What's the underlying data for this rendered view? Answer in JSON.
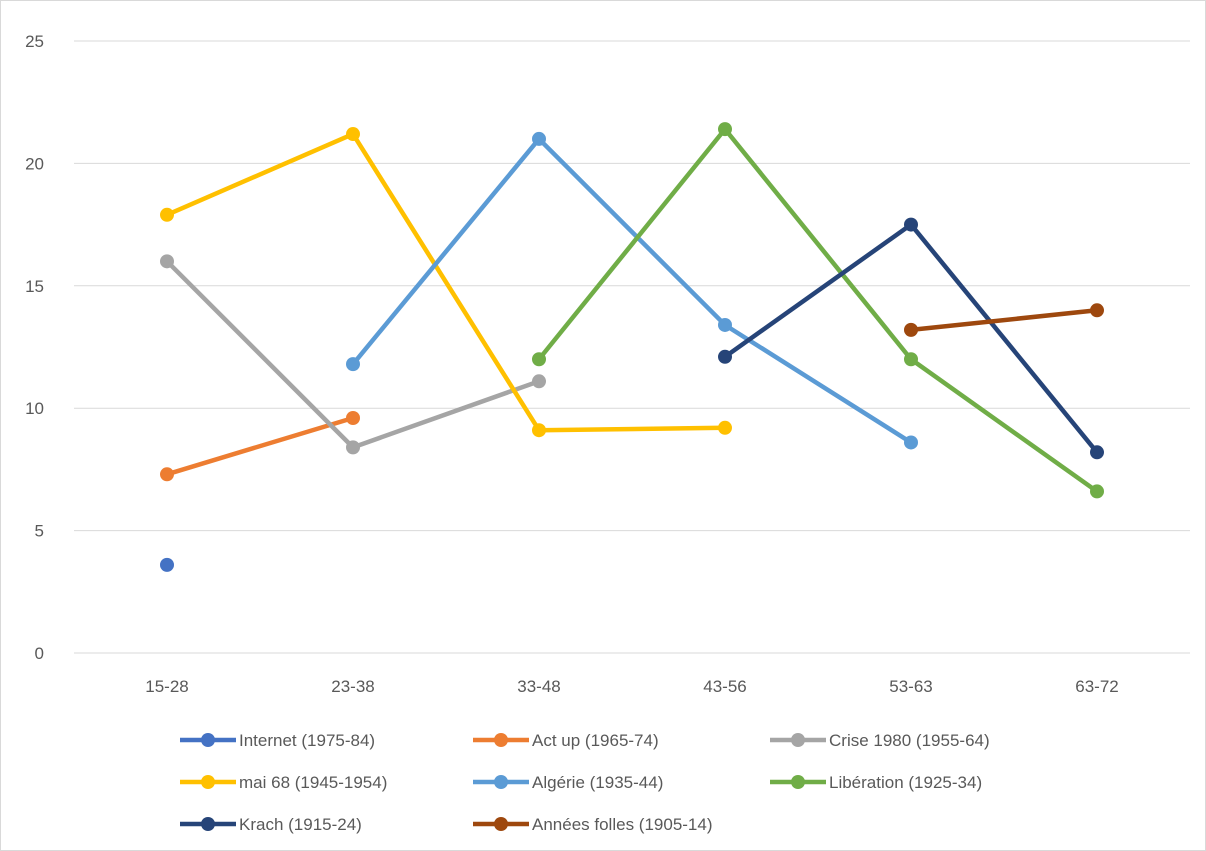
{
  "chart_data": {
    "type": "line",
    "title": "",
    "xlabel": "",
    "ylabel": "",
    "categories": [
      "15-28",
      "23-38",
      "33-48",
      "43-56",
      "53-63",
      "63-72"
    ],
    "ylim": [
      0,
      25
    ],
    "yticks": [
      0,
      5,
      10,
      15,
      20,
      25
    ],
    "grid": true,
    "legend_position": "bottom",
    "series": [
      {
        "name": "Internet  (1975-84)",
        "color": "#4472C4",
        "values": [
          3.6,
          null,
          null,
          null,
          null,
          null
        ]
      },
      {
        "name": "Act up (1965-74)",
        "color": "#ED7D31",
        "values": [
          7.3,
          9.6,
          null,
          null,
          null,
          null
        ]
      },
      {
        "name": "Crise 1980 (1955-64)",
        "color": "#A5A5A5",
        "values": [
          16.0,
          8.4,
          11.1,
          null,
          null,
          null
        ]
      },
      {
        "name": "mai 68 (1945-1954)",
        "color": "#FFC000",
        "values": [
          17.9,
          21.2,
          9.1,
          9.2,
          null,
          null
        ]
      },
      {
        "name": "Algérie (1935-44)",
        "color": "#5B9BD5",
        "values": [
          null,
          11.8,
          21.0,
          13.4,
          8.6,
          null
        ]
      },
      {
        "name": "Libération (1925-34)",
        "color": "#70AD47",
        "values": [
          null,
          null,
          12.0,
          21.4,
          12.0,
          6.6
        ]
      },
      {
        "name": "Krach (1915-24)",
        "color": "#264478",
        "values": [
          null,
          null,
          null,
          12.1,
          17.5,
          8.2
        ]
      },
      {
        "name": "Années folles (1905-14)",
        "color": "#9E480E",
        "values": [
          null,
          null,
          null,
          null,
          13.2,
          14.0
        ]
      }
    ]
  }
}
